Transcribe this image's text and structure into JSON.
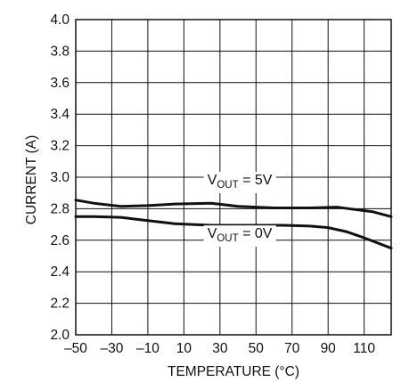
{
  "chart_data": {
    "type": "line",
    "title": "",
    "xlabel": "TEMPERATURE (°C)",
    "ylabel": "CURRENT (A)",
    "xlim": [
      -50,
      125
    ],
    "ylim": [
      2.0,
      4.0
    ],
    "x_ticks": [
      -50,
      -30,
      -10,
      10,
      30,
      50,
      70,
      90,
      110
    ],
    "x_tick_labels": [
      "–50",
      "–30",
      "–10",
      "10",
      "30",
      "50",
      "70",
      "90",
      "110"
    ],
    "y_ticks": [
      2.0,
      2.2,
      2.4,
      2.6,
      2.8,
      3.0,
      3.2,
      3.4,
      3.6,
      3.8,
      4.0
    ],
    "y_tick_labels": [
      "2.0",
      "2.2",
      "2.4",
      "2.6",
      "2.8",
      "3.0",
      "3.2",
      "3.4",
      "3.6",
      "3.8",
      "4.0"
    ],
    "grid": true,
    "series": [
      {
        "x": [
          -50,
          -40,
          -25,
          -10,
          5,
          25,
          40,
          60,
          80,
          95,
          105,
          115,
          125
        ],
        "y": [
          2.855,
          2.835,
          2.815,
          2.82,
          2.83,
          2.835,
          2.815,
          2.805,
          2.805,
          2.81,
          2.795,
          2.78,
          2.75
        ]
      },
      {
        "x": [
          -50,
          -40,
          -25,
          -10,
          5,
          25,
          45,
          65,
          80,
          90,
          100,
          110,
          125
        ],
        "y": [
          2.75,
          2.75,
          2.745,
          2.725,
          2.705,
          2.695,
          2.695,
          2.695,
          2.69,
          2.68,
          2.655,
          2.615,
          2.55
        ]
      }
    ],
    "annotations": [
      {
        "main": "V",
        "sub": "OUT",
        "tail": " = 5V",
        "x": 41,
        "y": 2.955
      },
      {
        "main": "V",
        "sub": "OUT",
        "tail": " = 0V",
        "x": 41,
        "y": 2.615
      }
    ]
  },
  "colors": {
    "line": "#111111",
    "grid": "#111111",
    "background": "#ffffff"
  }
}
